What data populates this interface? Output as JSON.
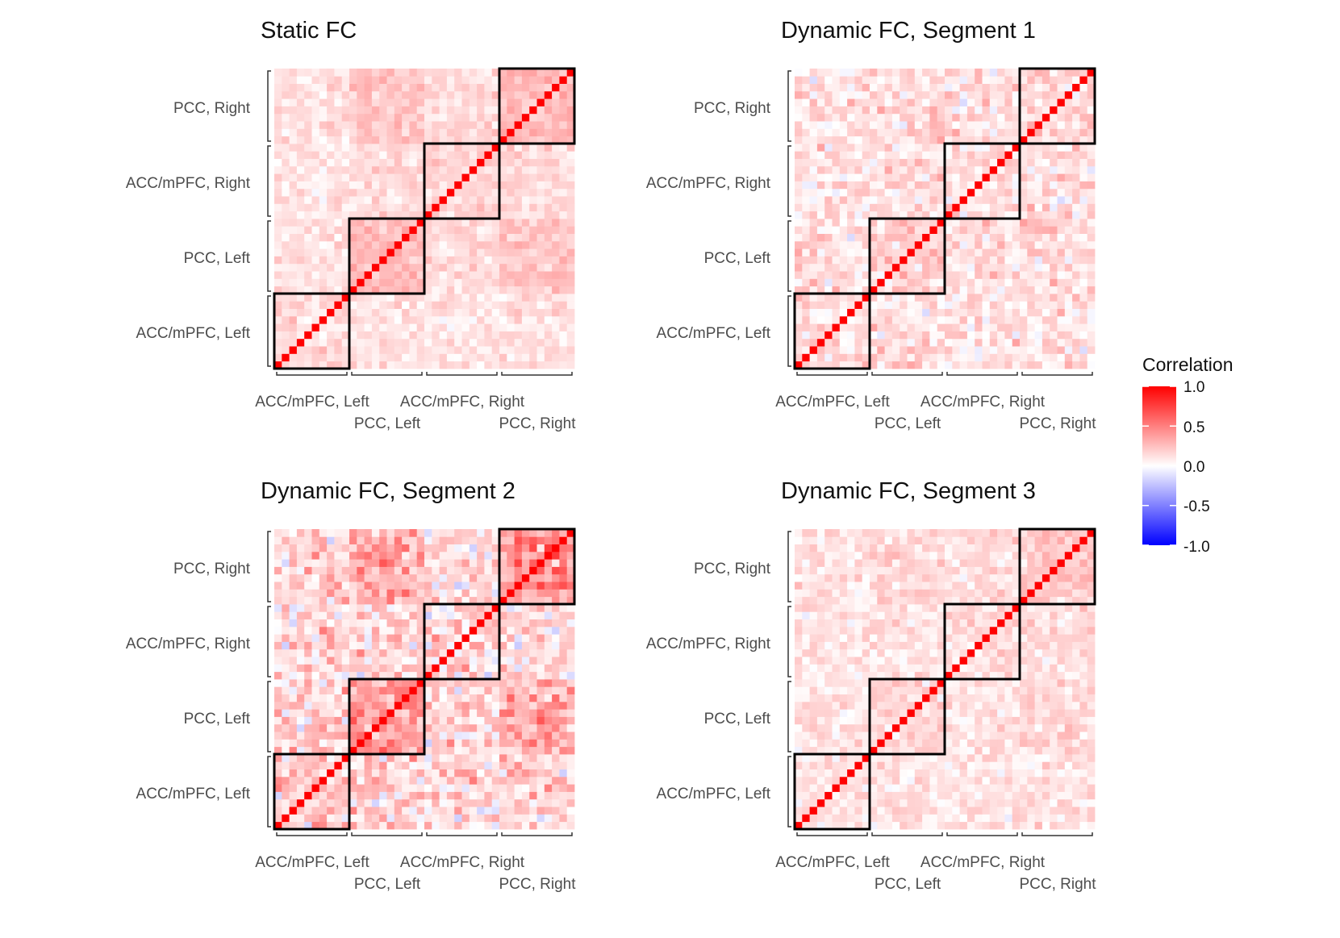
{
  "chart_data": {
    "type": "heatmap",
    "matrix_size": 40,
    "regions": [
      "ACC/mPFC, Left",
      "PCC, Left",
      "ACC/mPFC, Right",
      "PCC, Right"
    ],
    "cells_per_region": 10,
    "diagonal_value": 1.0,
    "panels": [
      {
        "title": "Static FC",
        "xlabels": [
          "ACC/mPFC, Left",
          "PCC, Left",
          "ACC/mPFC, Right",
          "PCC, Right"
        ],
        "ylabels": [
          "ACC/mPFC, Left",
          "PCC, Left",
          "ACC/mPFC, Right",
          "PCC, Right"
        ],
        "block_means": [
          [
            0.15,
            0.12,
            0.1,
            0.12
          ],
          [
            0.12,
            0.25,
            0.14,
            0.22
          ],
          [
            0.1,
            0.14,
            0.15,
            0.14
          ],
          [
            0.12,
            0.22,
            0.14,
            0.28
          ]
        ],
        "noise_sd": 0.06
      },
      {
        "title": "Dynamic FC, Segment 1",
        "xlabels": [
          "ACC/mPFC, Left",
          "PCC, Left",
          "ACC/mPFC, Right",
          "PCC, Right"
        ],
        "ylabels": [
          "ACC/mPFC, Left",
          "PCC, Left",
          "ACC/mPFC, Right",
          "PCC, Right"
        ],
        "block_means": [
          [
            0.12,
            0.12,
            0.1,
            0.1
          ],
          [
            0.12,
            0.16,
            0.12,
            0.14
          ],
          [
            0.1,
            0.12,
            0.12,
            0.12
          ],
          [
            0.1,
            0.14,
            0.12,
            0.18
          ]
        ],
        "noise_sd": 0.1
      },
      {
        "title": "Dynamic FC, Segment 2",
        "xlabels": [
          "ACC/mPFC, Left",
          "PCC, Left",
          "ACC/mPFC, Right",
          "PCC, Right"
        ],
        "ylabels": [
          "ACC/mPFC, Left",
          "PCC, Left",
          "ACC/mPFC, Right",
          "PCC, Right"
        ],
        "block_means": [
          [
            0.18,
            0.18,
            0.12,
            0.16
          ],
          [
            0.18,
            0.38,
            0.14,
            0.32
          ],
          [
            0.12,
            0.14,
            0.14,
            0.12
          ],
          [
            0.16,
            0.32,
            0.12,
            0.42
          ]
        ],
        "noise_sd": 0.14
      },
      {
        "title": "Dynamic FC, Segment 3",
        "xlabels": [
          "ACC/mPFC, Left",
          "PCC, Left",
          "ACC/mPFC, Right",
          "PCC, Right"
        ],
        "ylabels": [
          "ACC/mPFC, Left",
          "PCC, Left",
          "ACC/mPFC, Right",
          "PCC, Right"
        ],
        "block_means": [
          [
            0.12,
            0.1,
            0.1,
            0.1
          ],
          [
            0.1,
            0.14,
            0.1,
            0.16
          ],
          [
            0.1,
            0.1,
            0.12,
            0.12
          ],
          [
            0.1,
            0.16,
            0.12,
            0.2
          ]
        ],
        "noise_sd": 0.07
      }
    ],
    "colorbar": {
      "title": "Correlation",
      "range": [
        -1.0,
        1.0
      ],
      "ticks": [
        "1.0",
        "0.5",
        "0.0",
        "-0.5",
        "-1.0"
      ],
      "tick_values": [
        1.0,
        0.5,
        0.0,
        -0.5,
        -1.0
      ],
      "colors": {
        "low": "#0000ff",
        "mid": "#ffffff",
        "high": "#ff0000"
      }
    },
    "block_outline_color": "#000000"
  }
}
